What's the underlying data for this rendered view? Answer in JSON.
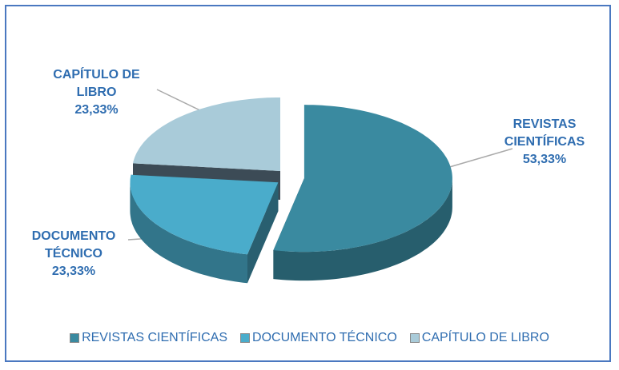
{
  "chart_data": {
    "type": "pie3d",
    "categories": [
      "REVISTAS CIENTÍFICAS",
      "DOCUMENTO TÉCNICO",
      "CAPÍTULO DE LIBRO"
    ],
    "values": [
      53.33,
      23.33,
      23.33
    ],
    "value_labels": [
      "53,33%",
      "23,33%",
      "23,33%"
    ],
    "colors": [
      "#3a8aa0",
      "#4aaccb",
      "#a9cbd9"
    ],
    "legend": "bottom"
  }
}
